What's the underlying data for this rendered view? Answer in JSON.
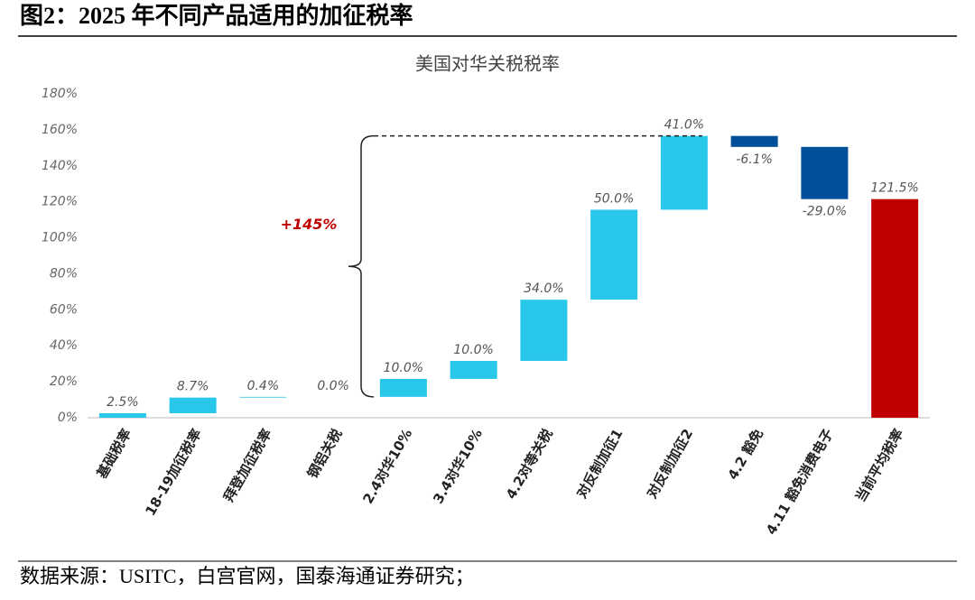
{
  "figure_title": "图2：2025 年不同产品适用的加征税率",
  "source": "数据来源：USITC，白宫官网，国泰海通证券研究；",
  "chart_data": {
    "type": "waterfall",
    "title": "美国对华关税税率",
    "categories": [
      "基础税率",
      "18-19加征税率",
      "拜登加征税率",
      "钢铝关税",
      "2.4对华10%",
      "3.4对华10%",
      "4.2对等关税",
      "对反制加征1",
      "对反制加征2",
      "4.2 豁免",
      "4.11 豁免消费电子",
      "当前平均税率"
    ],
    "values": [
      2.5,
      8.7,
      0.4,
      0,
      10,
      10,
      34,
      50,
      41,
      -6.1,
      -29,
      121.5
    ],
    "value_labels": [
      "2.5%",
      "8.7%",
      "0.4%",
      "0.0%",
      "10.0%",
      "10.0%",
      "34.0%",
      "50.0%",
      "41.0%",
      "-6.1%",
      "-29.0%",
      "121.5%"
    ],
    "measure": [
      "relative",
      "relative",
      "relative",
      "relative",
      "relative",
      "relative",
      "relative",
      "relative",
      "relative",
      "relative",
      "relative",
      "total"
    ],
    "colors": [
      "#29c8ea",
      "#29c8ea",
      "#29c8ea",
      "#29c8ea",
      "#29c8ea",
      "#29c8ea",
      "#29c8ea",
      "#29c8ea",
      "#29c8ea",
      "#004f98",
      "#004f98",
      "#c00000"
    ],
    "ylim": [
      0,
      180
    ],
    "yticks": [
      {
        "value": 0,
        "label": "0%"
      },
      {
        "value": 20,
        "label": "20%"
      },
      {
        "value": 40,
        "label": "40%"
      },
      {
        "value": 60,
        "label": "60%"
      },
      {
        "value": 80,
        "label": "80%"
      },
      {
        "value": 100,
        "label": "100%"
      },
      {
        "value": 120,
        "label": "120%"
      },
      {
        "value": 140,
        "label": "140%"
      },
      {
        "value": 160,
        "label": "160%"
      },
      {
        "value": 180,
        "label": "180%"
      }
    ],
    "grid": false,
    "annotation": "+145%"
  }
}
